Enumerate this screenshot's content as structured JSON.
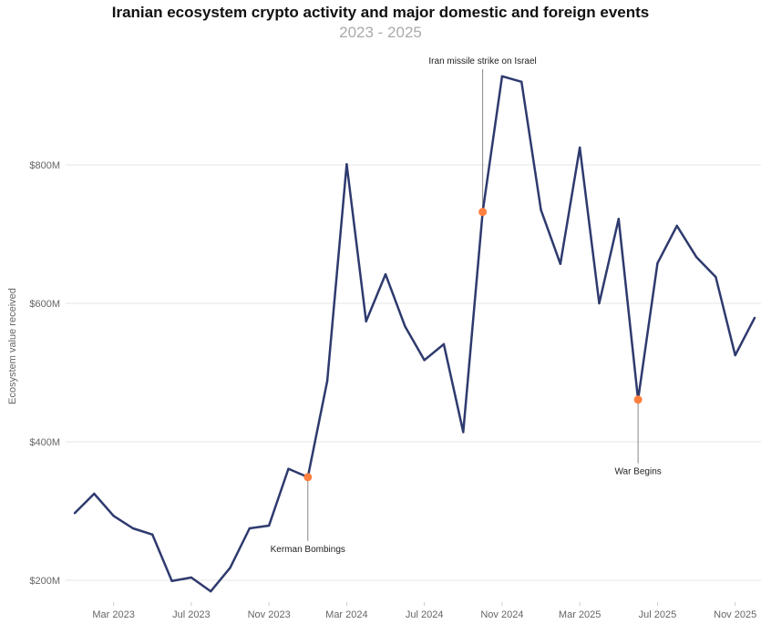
{
  "chart_data": {
    "type": "line",
    "title": "Iranian ecosystem crypto activity and major domestic and foreign events",
    "subtitle": "2023 - 2025",
    "ylabel": "Ecosystem value received",
    "xlabel": "",
    "ylim": [
      165,
      950
    ],
    "grid": true,
    "y_ticks": [
      {
        "v": 200,
        "label": "$200M"
      },
      {
        "v": 400,
        "label": "$400M"
      },
      {
        "v": 600,
        "label": "$600M"
      },
      {
        "v": 800,
        "label": "$800M"
      }
    ],
    "x_ticks": [
      {
        "i": 2,
        "label": "Mar 2023"
      },
      {
        "i": 6,
        "label": "Jul 2023"
      },
      {
        "i": 10,
        "label": "Nov 2023"
      },
      {
        "i": 14,
        "label": "Mar 2024"
      },
      {
        "i": 18,
        "label": "Jul 2024"
      },
      {
        "i": 22,
        "label": "Nov 2024"
      },
      {
        "i": 26,
        "label": "Mar 2025"
      },
      {
        "i": 30,
        "label": "Jul 2025"
      },
      {
        "i": 34,
        "label": "Nov 2025"
      }
    ],
    "x": [
      "2023-01",
      "2023-02",
      "2023-03",
      "2023-04",
      "2023-05",
      "2023-06",
      "2023-07",
      "2023-08",
      "2023-09",
      "2023-10",
      "2023-11",
      "2023-12",
      "2024-01",
      "2024-02",
      "2024-03",
      "2024-04",
      "2024-05",
      "2024-06",
      "2024-07",
      "2024-08",
      "2024-09",
      "2024-10",
      "2024-11",
      "2024-12",
      "2025-01",
      "2025-02",
      "2025-03",
      "2025-04",
      "2025-05",
      "2025-06",
      "2025-07",
      "2025-08",
      "2025-09",
      "2025-10",
      "2025-11",
      "2025-12"
    ],
    "series": [
      {
        "values": [
          297,
          325,
          293,
          275,
          266,
          199,
          204,
          184,
          218,
          275,
          279,
          361,
          349,
          488,
          801,
          574,
          642,
          567,
          518,
          541,
          414,
          732,
          928,
          920,
          735,
          657,
          825,
          600,
          722,
          461,
          658,
          712,
          667,
          638,
          525,
          579
        ]
      }
    ],
    "line_color": "#2e3a6e",
    "marker_color": "#ff7f3f",
    "annotations": [
      {
        "i": 12,
        "label": "Kerman Bombings",
        "position": "below"
      },
      {
        "i": 21,
        "label": "Iran missile strike on Israel",
        "position": "above"
      },
      {
        "i": 29,
        "label": "War Begins",
        "position": "below"
      }
    ]
  }
}
